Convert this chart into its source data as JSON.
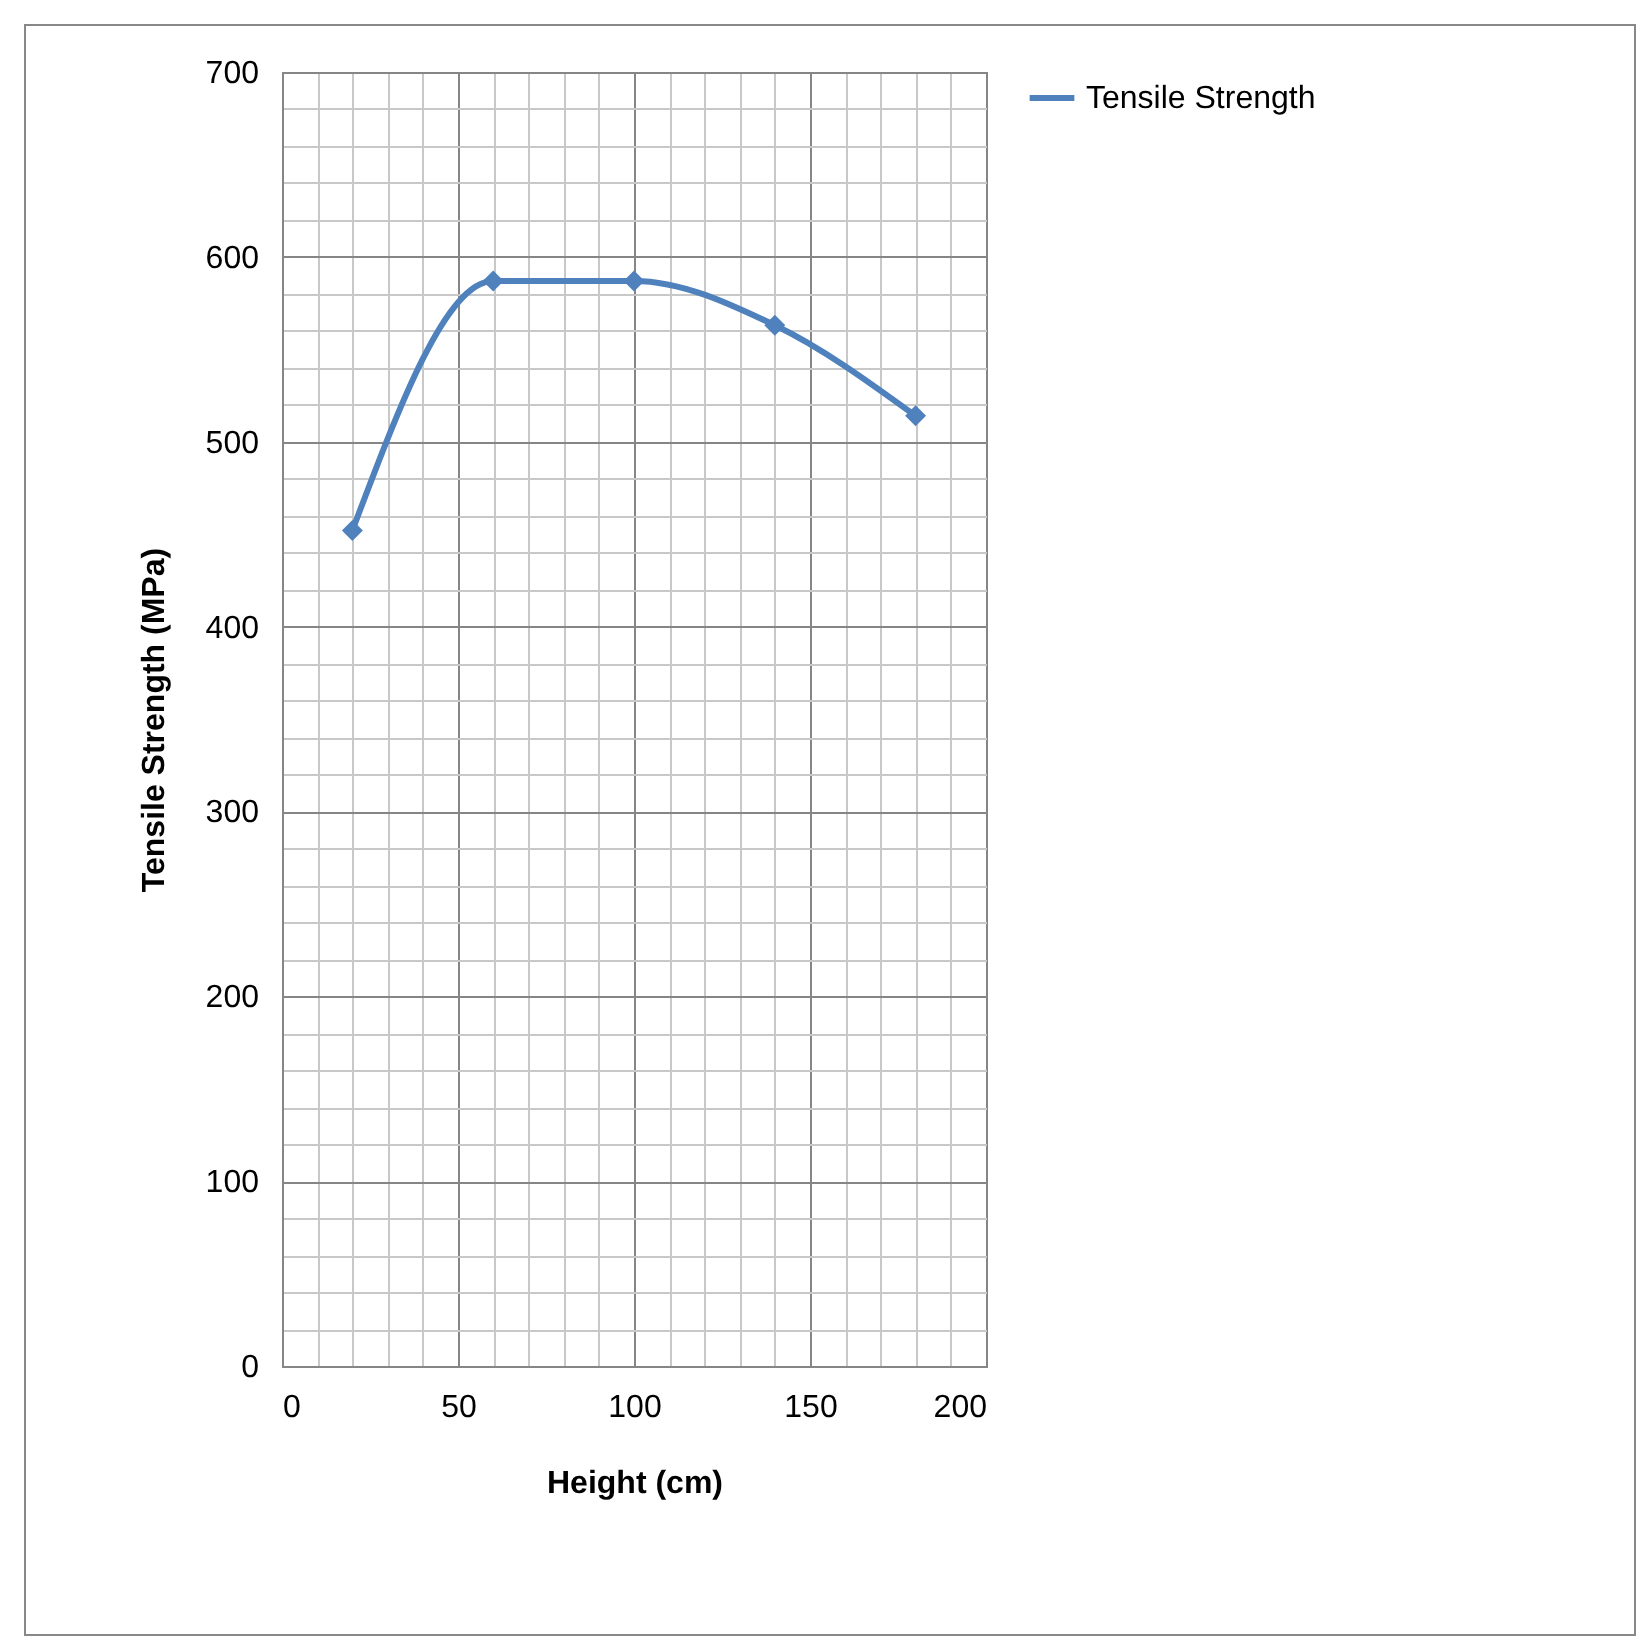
{
  "chart_data": {
    "type": "line",
    "xlabel": "Height (cm)",
    "ylabel": "Tensile Strength (MPa)",
    "x": [
      20,
      60,
      100,
      140,
      180
    ],
    "series": [
      {
        "name": "Tensile Strength",
        "color": "#4f81bd",
        "values": [
          452,
          587,
          587,
          563,
          514
        ]
      }
    ],
    "xlim": [
      0,
      200
    ],
    "xticks": [
      0,
      50,
      100,
      150,
      200
    ],
    "ylim": [
      0,
      700
    ],
    "yticks": [
      0,
      100,
      200,
      300,
      400,
      500,
      600,
      700
    ],
    "grid": true,
    "legend": "right",
    "marker": "diamond",
    "line_style": "solid"
  }
}
